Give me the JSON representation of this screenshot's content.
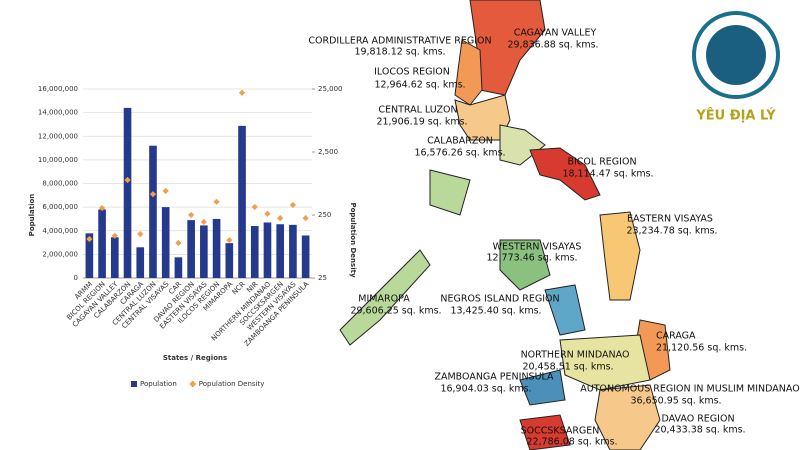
{
  "chart_data": {
    "type": "bar-scatter",
    "categories": [
      "ARMM",
      "BICOL REGION",
      "CAGAYAN VALLEY",
      "CALABARZON",
      "CARAGA",
      "CENTRAL LUZON",
      "CENTRAL VISAYAS",
      "CAR",
      "DAVAO REGION",
      "EASTERN VISAYAS",
      "ILOCOS REGION",
      "MIMAROPA",
      "NCR",
      "NIR",
      "NORTHERN MINDANAO",
      "SOCCSKSARGEN",
      "WESTERN VISAYAS",
      "ZAMBOANGA PENINSULA"
    ],
    "series": [
      {
        "name": "Population",
        "color": "#253a8c",
        "values": [
          3780000,
          5800000,
          3450000,
          14400000,
          2600000,
          11200000,
          6000000,
          1750000,
          4900000,
          4450000,
          5000000,
          2950000,
          12880000,
          4400000,
          4700000,
          4550000,
          4500000,
          3600000
        ]
      },
      {
        "name": "Population Density",
        "color": "#f0a04b",
        "axis": "y2",
        "values": [
          104,
          322,
          117,
          900,
          125,
          535,
          600,
          90,
          250,
          194,
          405,
          100,
          21800,
          335,
          262,
          223,
          360,
          223
        ]
      }
    ],
    "ylabel": "Population",
    "xlabel": "States / Regions",
    "y2label": "Population Density",
    "ylim": [
      0,
      16000000
    ],
    "yticks": [
      0,
      {
        "value": 2000000,
        "label": "2,000,000"
      },
      {
        "value": 4000000,
        "label": "4,000,000"
      },
      {
        "value": 6000000,
        "label": "6,000,000"
      },
      {
        "value": 8000000,
        "label": "8,000,000"
      },
      {
        "value": 10000000,
        "label": "10,000,000"
      },
      {
        "value": 12000000,
        "label": "12,000,000"
      },
      {
        "value": 14000000,
        "label": "14,000,000"
      },
      {
        "value": 16000000,
        "label": "16,000,000"
      }
    ],
    "y2lim": [
      25,
      25000
    ],
    "y2log": true,
    "y2ticks": [
      25,
      250,
      {
        "value": 2500,
        "label": "2,500"
      },
      {
        "value": 25000,
        "label": "25,000"
      }
    ],
    "grid": true,
    "legend": "bottom"
  },
  "map": {
    "labels": [
      {
        "name": "CORDILLERA ADMINISTRATIVE REGION",
        "area": "19,818.12 sq. kms."
      },
      {
        "name": "CAGAYAN VALLEY",
        "area": "29,836.88 sq. kms."
      },
      {
        "name": "ILOCOS REGION",
        "area": "12,964.62 sq. kms."
      },
      {
        "name": "CENTRAL LUZON",
        "area": "21,906.19 sq. kms."
      },
      {
        "name": "CALABARZON",
        "area": "16,576.26 sq. kms."
      },
      {
        "name": "BICOL REGION",
        "area": "18,114.47 sq. kms."
      },
      {
        "name": "EASTERN VISAYAS",
        "area": "23,234.78 sq. kms."
      },
      {
        "name": "WESTERN VISAYAS",
        "area": "12,773.46 sq. kms."
      },
      {
        "name": "MIMAROPA",
        "area": "29,606.25 sq. kms."
      },
      {
        "name": "NEGROS ISLAND REGION",
        "area": "13,425.40 sq. kms."
      },
      {
        "name": "CARAGA",
        "area": "21,120.56 sq. kms."
      },
      {
        "name": "NORTHERN MINDANAO",
        "area": "20,458.51 sq. kms."
      },
      {
        "name": "ZAMBOANGA PENINSULA",
        "area": "16,904.03 sq. kms."
      },
      {
        "name": "AUTONOMOUS REGION IN MUSLIM MINDANAO",
        "area": "36,650.95 sq. kms."
      },
      {
        "name": "DAVAO REGION",
        "area": "20,433.38 sq. kms."
      },
      {
        "name": "SOCCSKSARGEN",
        "area": "22,786.08 sq. kms."
      }
    ]
  },
  "logo": {
    "text": "YÊU ĐỊA LÝ"
  }
}
